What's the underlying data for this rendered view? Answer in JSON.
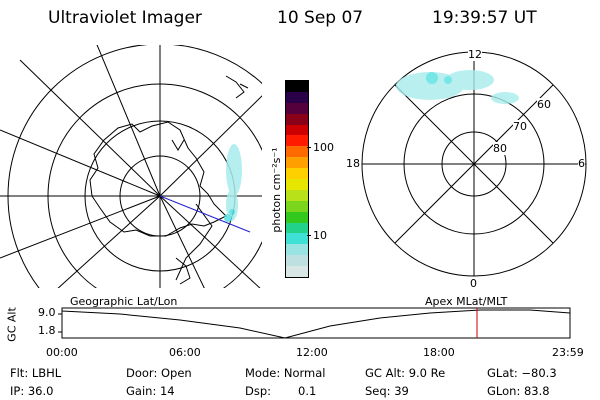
{
  "header": {
    "instrument": "Ultraviolet Imager",
    "date": "10 Sep 07",
    "time": "19:39:57 UT"
  },
  "colorbar": {
    "unit_label": "photon cm⁻²s⁻¹",
    "ticks": [
      "100",
      "10"
    ],
    "colors": [
      "#d8e6e6",
      "#bfe0e0",
      "#99e3e3",
      "#3fe0d6",
      "#22d18a",
      "#33c81e",
      "#7ad51c",
      "#b8e11a",
      "#e6e600",
      "#ffd000",
      "#ffa000",
      "#ff6a00",
      "#ff1a00",
      "#cc0000",
      "#8a0018",
      "#55003c",
      "#2a0048",
      "#000000"
    ]
  },
  "geo_map": {
    "label": "Geographic Lat/Lon"
  },
  "apex_map": {
    "label": "Apex MLat/MLT",
    "mlt_labels": {
      "top": "12",
      "bottom": "0",
      "left": "18",
      "right": "6"
    },
    "mlat_labels": [
      "60",
      "70",
      "80"
    ]
  },
  "altitude_plot": {
    "axis_title": "GC Alt",
    "y_ticks": [
      "9.0",
      "1.8"
    ],
    "x_ticks": [
      "00:00",
      "06:00",
      "12:00",
      "18:00",
      "23:59"
    ],
    "marker_time": "19:39:57",
    "marker_color": "#cc0000"
  },
  "footer": {
    "row1": {
      "flt": "Flt: LBHL",
      "door": "Door: Open",
      "mode": "Mode: Normal",
      "gcalt": "GC Alt: 9.0 Re",
      "glat": "GLat: −80.3"
    },
    "row2": {
      "ip": "IP: 36.0",
      "gain": "Gain: 14",
      "dsp_label": "Dsp:",
      "dsp_value": "0.1",
      "seq": "Seq: 39",
      "glon": "GLon: 83.8"
    }
  }
}
